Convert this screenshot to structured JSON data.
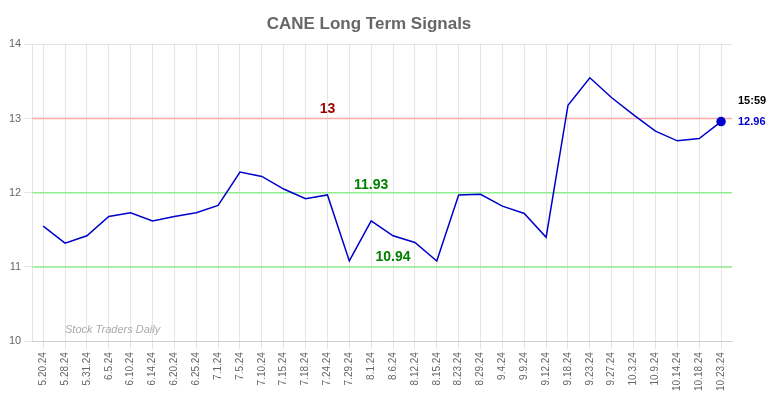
{
  "chart_data": {
    "type": "line",
    "title": "CANE Long Term Signals",
    "categories": [
      "5.20.24",
      "5.28.24",
      "5.31.24",
      "6.5.24",
      "6.10.24",
      "6.14.24",
      "6.20.24",
      "6.25.24",
      "7.1.24",
      "7.5.24",
      "7.10.24",
      "7.15.24",
      "7.18.24",
      "7.24.24",
      "7.29.24",
      "8.1.24",
      "8.6.24",
      "8.12.24",
      "8.15.24",
      "8.23.24",
      "8.29.24",
      "9.4.24",
      "9.9.24",
      "9.12.24",
      "9.18.24",
      "9.23.24",
      "9.27.24",
      "10.3.24",
      "10.9.24",
      "10.14.24",
      "10.18.24",
      "10.23.24"
    ],
    "values": [
      11.55,
      11.32,
      11.42,
      11.68,
      11.73,
      11.62,
      11.68,
      11.73,
      11.83,
      12.28,
      12.22,
      12.05,
      11.92,
      11.97,
      11.08,
      11.62,
      11.42,
      11.33,
      11.08,
      11.97,
      11.98,
      11.82,
      11.72,
      11.4,
      13.18,
      13.55,
      13.28,
      13.05,
      12.83,
      12.7,
      12.73,
      12.96
    ],
    "color": "#0000cc",
    "marker": "last",
    "ylim": [
      10,
      14
    ],
    "yticks": [
      10,
      11,
      12,
      13,
      14
    ],
    "grid": true,
    "hlines": [
      {
        "value": 13.0,
        "color": "#ffaaaa"
      },
      {
        "value": 12.0,
        "color": "#90ee90"
      },
      {
        "value": 11.0,
        "color": "#90ee90"
      }
    ],
    "annotations": [
      {
        "text": "13",
        "x": "7.24.24",
        "y": 13.08,
        "color": "#990000"
      },
      {
        "text": "11.93",
        "x": "8.1.24",
        "y": 12.05,
        "color": "#008000"
      },
      {
        "text": "10.94",
        "x": "8.6.24",
        "y": 11.08,
        "color": "#008000"
      },
      {
        "text": "15:59",
        "anchor": "right",
        "y": 13.24,
        "color": "#000000"
      },
      {
        "text": "12.96",
        "anchor": "right",
        "y": 12.96,
        "color": "#0000cc"
      },
      {
        "text": "Stock Traders Daily",
        "x": "5.28.24",
        "y": 10.07,
        "color": "#aaaaaa",
        "style": "italic"
      }
    ]
  }
}
